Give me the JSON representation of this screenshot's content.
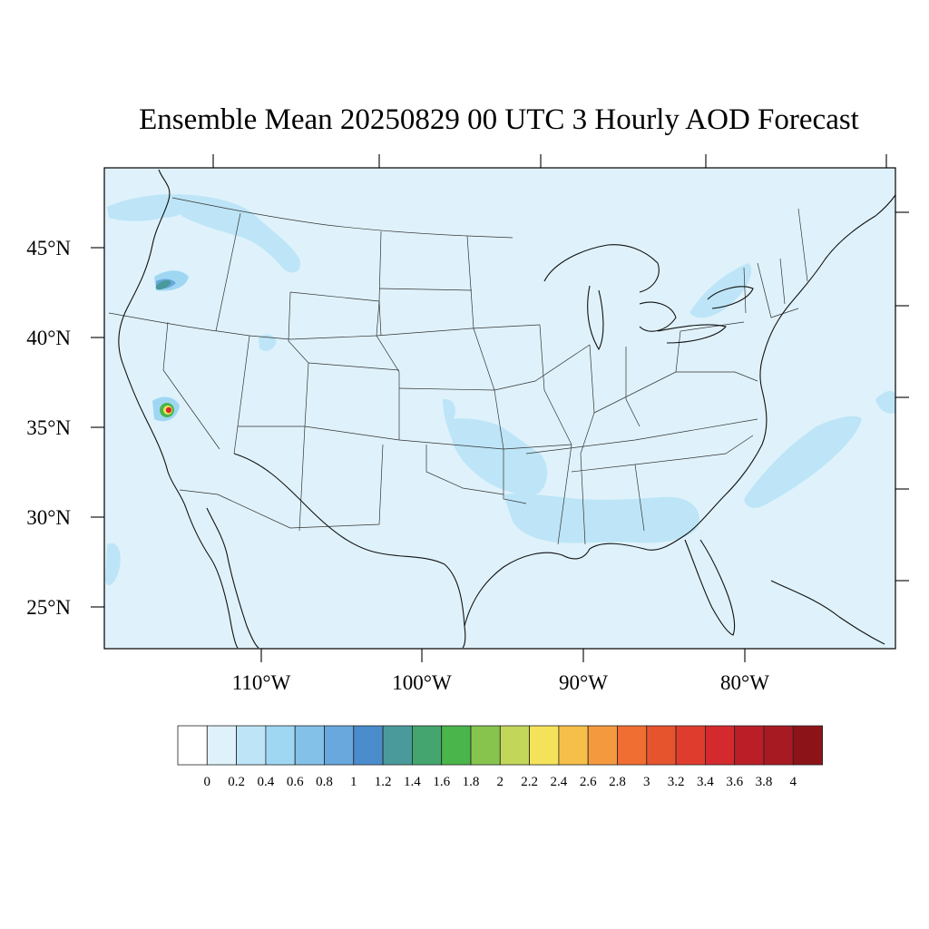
{
  "title": "Ensemble Mean 20250829 00 UTC 3 Hourly AOD Forecast",
  "map": {
    "background_color": "#dff2fb",
    "lat_labels": [
      "45°N",
      "40°N",
      "35°N",
      "30°N",
      "25°N"
    ],
    "lon_labels": [
      "110°W",
      "100°W",
      "90°W",
      "80°W"
    ],
    "projection": "Lambert conformal, contiguous United States",
    "hotspots": [
      {
        "region": "northern California / southern Oregon",
        "aod": 1.4
      },
      {
        "region": "southern Nevada",
        "aod": 4.0
      }
    ]
  },
  "colorbar": {
    "labels": [
      "0",
      "0.2",
      "0.4",
      "0.6",
      "0.8",
      "1",
      "1.2",
      "1.4",
      "1.6",
      "1.8",
      "2",
      "2.2",
      "2.4",
      "2.6",
      "2.8",
      "3",
      "3.2",
      "3.4",
      "3.6",
      "3.8",
      "4"
    ],
    "colors": [
      "#ffffff",
      "#dff2fb",
      "#bde5f7",
      "#9fd7f3",
      "#84c1e8",
      "#68a8dc",
      "#4a8ccc",
      "#4a9a9c",
      "#44a66e",
      "#4ab54a",
      "#86c44e",
      "#c2d65a",
      "#f4e35a",
      "#f6bf4a",
      "#f5993f",
      "#f06e31",
      "#e6542e",
      "#e03c2e",
      "#d42a2e",
      "#bc1e28",
      "#a81a22",
      "#8c1419"
    ]
  }
}
